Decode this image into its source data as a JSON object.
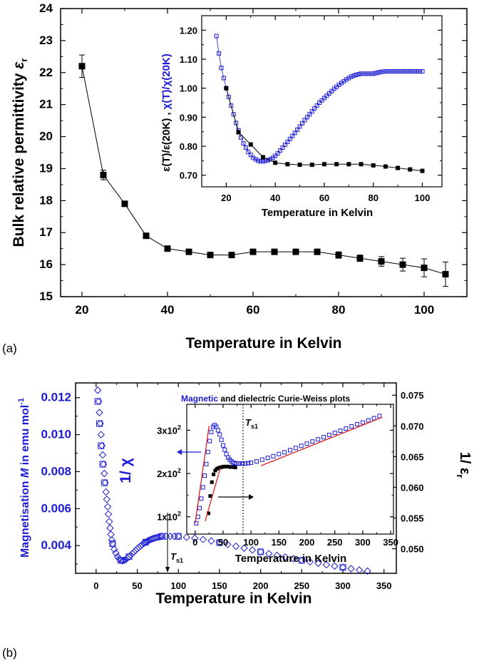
{
  "colors": {
    "blue": "#1b1bd6",
    "black": "#000000",
    "red": "#e02020"
  },
  "panel_a": {
    "label": "(a)",
    "main": {
      "xlabel": "Temperature in Kelvin",
      "ylabel_text": "Bulk relative permittivity ",
      "ylabel_symbol": "ε",
      "ylabel_sub": "r",
      "x_ticks": [
        "20",
        "40",
        "60",
        "80",
        "100"
      ],
      "y_ticks": [
        "15",
        "16",
        "17",
        "18",
        "19",
        "20",
        "21",
        "22",
        "23",
        "24"
      ]
    },
    "inset": {
      "xlabel": "Temperature in Kelvin",
      "ylabel_black": "ε(T)/ε(20K) ,",
      "ylabel_blue": "χ(T)/χ(20K)",
      "x_ticks": [
        "20",
        "40",
        "60",
        "80",
        "100"
      ],
      "y_ticks": [
        "0.70",
        "0.80",
        "0.90",
        "1.00",
        "1.10",
        "1.20"
      ]
    }
  },
  "panel_b": {
    "label": "(b)",
    "main": {
      "xlabel": "Temperature in Kelvin",
      "ylabel_left_pre": "Magnetisation ",
      "ylabel_left_italic": "M",
      "ylabel_left_post": " in emu mol",
      "ylabel_left_sup": "-1",
      "ylabel_right": "1/ ε",
      "ylabel_right_sub": "r",
      "x_ticks": [
        "0",
        "50",
        "100",
        "150",
        "200",
        "250",
        "300",
        "350"
      ],
      "y_ticks": [
        "0.004",
        "0.006",
        "0.008",
        "0.010",
        "0.012"
      ],
      "right_ticks": [
        "0.050",
        "0.055",
        "0.060",
        "0.065",
        "0.070",
        "0.075"
      ],
      "annotation": "T",
      "annotation_sub": "s1"
    },
    "inset": {
      "title_blue": "Magnetic",
      "title_black": " and dielectric Curie-Weiss plots",
      "ylabel": "1/ χ",
      "xlabel": "Temperature in Kelvin",
      "x_ticks": [
        "0",
        "50",
        "100",
        "150",
        "200",
        "250",
        "300",
        "350"
      ],
      "y_ticks": [
        "1x10",
        "2x10",
        "3x10"
      ],
      "y_tick_exp": "2",
      "annotation": "T",
      "annotation_sub": "s1"
    }
  },
  "chart_data": [
    {
      "type": "line",
      "panel": "a-main",
      "xlabel": "Temperature in Kelvin",
      "ylabel": "Bulk relative permittivity εr",
      "xlim": [
        15,
        110
      ],
      "ylim": [
        15,
        24
      ],
      "grid": false,
      "series": [
        {
          "marker": "filled-square",
          "color": "#000000",
          "x": [
            20,
            25,
            30,
            35,
            40,
            45,
            50,
            55,
            60,
            65,
            70,
            75,
            80,
            85,
            90,
            95,
            100,
            105
          ],
          "y": [
            22.2,
            18.8,
            17.9,
            16.9,
            16.5,
            16.4,
            16.3,
            16.3,
            16.4,
            16.4,
            16.4,
            16.4,
            16.3,
            16.2,
            16.1,
            16.0,
            15.9,
            15.7
          ],
          "error": [
            0.35,
            0.15,
            0.05,
            0.05,
            0.05,
            0.05,
            0.05,
            0.05,
            0.05,
            0.05,
            0.05,
            0.05,
            0.1,
            0.1,
            0.15,
            0.2,
            0.28,
            0.38
          ]
        }
      ]
    },
    {
      "type": "line",
      "panel": "a-inset",
      "xlabel": "Temperature in Kelvin",
      "ylabel": "εr(T)/εr(20K) , χ(T)/χ(20K)",
      "xlim": [
        10,
        108
      ],
      "ylim": [
        0.66,
        1.25
      ],
      "grid": false,
      "series": [
        {
          "marker": "open-square",
          "color": "#1b1bd6",
          "x": [
            16,
            17,
            18,
            19,
            20,
            21,
            22,
            23,
            24,
            25,
            26,
            27,
            28,
            29,
            30,
            31,
            32,
            33,
            34,
            35,
            36,
            37,
            38,
            39,
            40,
            41,
            42,
            43,
            44,
            45,
            46,
            47,
            48,
            49,
            50,
            51,
            52,
            53,
            54,
            55,
            56,
            57,
            58,
            59,
            60,
            61,
            62,
            63,
            64,
            65,
            66,
            67,
            68,
            69,
            70,
            71,
            72,
            73,
            74,
            75,
            76,
            77,
            78,
            79,
            80,
            81,
            82,
            83,
            84,
            85,
            86,
            87,
            88,
            89,
            90,
            91,
            92,
            93,
            94,
            95,
            96,
            97,
            98,
            99,
            100
          ],
          "y": [
            1.18,
            1.12,
            1.07,
            1.035,
            1.0,
            0.97,
            0.94,
            0.91,
            0.88,
            0.855,
            0.83,
            0.81,
            0.795,
            0.78,
            0.77,
            0.76,
            0.755,
            0.75,
            0.748,
            0.748,
            0.75,
            0.752,
            0.755,
            0.76,
            0.767,
            0.775,
            0.785,
            0.795,
            0.805,
            0.815,
            0.825,
            0.835,
            0.846,
            0.857,
            0.868,
            0.879,
            0.89,
            0.9,
            0.91,
            0.92,
            0.93,
            0.94,
            0.95,
            0.958,
            0.966,
            0.974,
            0.982,
            0.99,
            0.998,
            1.005,
            1.012,
            1.018,
            1.024,
            1.03,
            1.035,
            1.04,
            1.043,
            1.046,
            1.048,
            1.05,
            1.05,
            1.05,
            1.05,
            1.05,
            1.05,
            1.052,
            1.054,
            1.056,
            1.057,
            1.058,
            1.058,
            1.058,
            1.058,
            1.058,
            1.058,
            1.058,
            1.058,
            1.058,
            1.058,
            1.058,
            1.058,
            1.058,
            1.058,
            1.058,
            1.058
          ]
        },
        {
          "marker": "filled-square",
          "color": "#000000",
          "x": [
            20,
            25,
            30,
            35,
            40,
            45,
            50,
            55,
            60,
            65,
            70,
            75,
            80,
            85,
            90,
            95,
            100
          ],
          "y": [
            1.0,
            0.848,
            0.806,
            0.762,
            0.743,
            0.738,
            0.736,
            0.736,
            0.738,
            0.738,
            0.738,
            0.738,
            0.734,
            0.73,
            0.725,
            0.72,
            0.715
          ]
        }
      ]
    },
    {
      "type": "scatter",
      "panel": "b-main",
      "xlabel": "Temperature in Kelvin",
      "ylabel": "Magnetisation M in emu mol-1",
      "ylabel_right": "1/ εr",
      "xlim": [
        -25,
        365
      ],
      "ylim": [
        0.0025,
        0.0128
      ],
      "ylim_right": [
        0.046,
        0.077
      ],
      "grid": false,
      "series": [
        {
          "marker": "open-diamond",
          "color": "#1b1bd6",
          "x": [
            2,
            3,
            4,
            5,
            6,
            7,
            8,
            9,
            10,
            11,
            12,
            13,
            14,
            15,
            16,
            17,
            18,
            19,
            20,
            22,
            24,
            26,
            28,
            30,
            32,
            34,
            36,
            38,
            40,
            42,
            44,
            46,
            48,
            50,
            52,
            54,
            56,
            58,
            60,
            62,
            64,
            66,
            68,
            70,
            72,
            74,
            76,
            78,
            80,
            85,
            90,
            95,
            100,
            110,
            120,
            130,
            140,
            150,
            160,
            170,
            180,
            190,
            200,
            210,
            220,
            230,
            240,
            250,
            260,
            270,
            280,
            290,
            300,
            310,
            320,
            330
          ],
          "y": [
            0.0124,
            0.0118,
            0.0112,
            0.0106,
            0.01,
            0.0094,
            0.0089,
            0.0084,
            0.0079,
            0.0074,
            0.0069,
            0.0065,
            0.0061,
            0.0057,
            0.0053,
            0.00495,
            0.0046,
            0.0043,
            0.0041,
            0.0038,
            0.0036,
            0.0034,
            0.00328,
            0.0032,
            0.00318,
            0.0032,
            0.00325,
            0.00332,
            0.0034,
            0.00348,
            0.00356,
            0.00365,
            0.00374,
            0.00382,
            0.0039,
            0.00398,
            0.00405,
            0.00412,
            0.00418,
            0.00423,
            0.00428,
            0.00432,
            0.00436,
            0.00439,
            0.00442,
            0.00444,
            0.00446,
            0.00448,
            0.0045,
            0.0045,
            0.0045,
            0.0045,
            0.0045,
            0.00445,
            0.0044,
            0.00433,
            0.00425,
            0.00416,
            0.00406,
            0.00396,
            0.00386,
            0.00376,
            0.00366,
            0.00356,
            0.00347,
            0.00338,
            0.00329,
            0.0032,
            0.00312,
            0.00304,
            0.00296,
            0.00289,
            0.00282,
            0.00275,
            0.00268,
            0.00262
          ]
        },
        {
          "marker": "open-square",
          "color": "#1b1bd6",
          "x": [
            2,
            4,
            6,
            8,
            10,
            20,
            30,
            40,
            60,
            80,
            100,
            150,
            200,
            250,
            300
          ],
          "y": [
            0.0118,
            0.0106,
            0.0094,
            0.0084,
            0.0074,
            0.0041,
            0.0032,
            0.0034,
            0.00418,
            0.0045,
            0.0045,
            0.00416,
            0.00366,
            0.0032,
            0.00282
          ]
        }
      ]
    },
    {
      "type": "scatter",
      "panel": "b-inset",
      "title": "Magnetic and dielectric Curie-Weiss plots",
      "xlabel": "Temperature in Kelvin",
      "ylabel": "1/ χ",
      "xlim": [
        -15,
        355
      ],
      "ylim": [
        60,
        360
      ],
      "grid": false,
      "series": [
        {
          "marker": "open-square",
          "color": "#1b1bd6",
          "x": [
            2,
            5,
            8,
            11,
            14,
            17,
            20,
            23,
            26,
            29,
            32,
            35,
            38,
            41,
            44,
            47,
            50,
            53,
            56,
            59,
            62,
            65,
            68,
            71,
            74,
            77,
            80,
            85,
            90,
            95,
            100,
            110,
            120,
            130,
            140,
            150,
            160,
            170,
            180,
            190,
            200,
            210,
            220,
            230,
            240,
            250,
            260,
            270,
            280,
            290,
            300,
            310,
            320,
            330
          ],
          "y": [
            85,
            100,
            120,
            142,
            168,
            195,
            222,
            250,
            275,
            296,
            308,
            312,
            308,
            300,
            290,
            278,
            265,
            255,
            245,
            237,
            232,
            228,
            225,
            224,
            223,
            223,
            223,
            223,
            223,
            224,
            225,
            228,
            232,
            236,
            240,
            245,
            249,
            254,
            259,
            264,
            269,
            274,
            279,
            284,
            289,
            294,
            299,
            304,
            309,
            314,
            318,
            323,
            328,
            333
          ]
        },
        {
          "marker": "filled-square",
          "color": "#000000",
          "x": [
            24,
            27,
            30,
            33,
            36,
            39,
            42,
            45,
            48,
            51,
            54,
            57,
            60,
            63,
            66,
            69,
            72
          ],
          "y": [
            108,
            148,
            180,
            198,
            207,
            211,
            213,
            214,
            215,
            216,
            216,
            216,
            216,
            215,
            215,
            215,
            214
          ]
        },
        {
          "marker": "line",
          "color": "#e02020",
          "name": "",
          "x": [
            0,
            25
          ],
          "y": [
            85,
            310
          ]
        },
        {
          "marker": "line",
          "color": "#e02020",
          "name": "",
          "x": [
            18,
            45
          ],
          "y": [
            90,
            212
          ]
        },
        {
          "marker": "line",
          "color": "#e02020",
          "name": "",
          "x": [
            118,
            335
          ],
          "y": [
            218,
            330
          ]
        }
      ]
    }
  ]
}
